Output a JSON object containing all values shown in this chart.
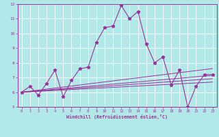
{
  "bg_color": "#b3e8e8",
  "line_color": "#993399",
  "grid_color": "#ffffff",
  "xlabel": "Windchill (Refroidissement éolien,°C)",
  "xlim": [
    -0.5,
    23.5
  ],
  "ylim": [
    5,
    12
  ],
  "yticks": [
    5,
    6,
    7,
    8,
    9,
    10,
    11,
    12
  ],
  "xticks": [
    0,
    1,
    2,
    3,
    4,
    5,
    6,
    7,
    8,
    9,
    10,
    11,
    12,
    13,
    14,
    15,
    16,
    17,
    18,
    19,
    20,
    21,
    22,
    23
  ],
  "main_line": [
    6.0,
    6.4,
    5.8,
    6.6,
    7.5,
    5.7,
    6.8,
    7.6,
    7.7,
    9.4,
    10.4,
    10.5,
    11.9,
    11.0,
    11.5,
    9.3,
    8.0,
    8.4,
    6.5,
    7.5,
    5.0,
    6.4,
    7.2,
    7.2
  ],
  "linear_lines": [
    [
      6.0,
      6.03,
      6.06,
      6.09,
      6.12,
      6.15,
      6.18,
      6.21,
      6.24,
      6.27,
      6.3,
      6.33,
      6.36,
      6.39,
      6.42,
      6.45,
      6.48,
      6.51,
      6.54,
      6.57,
      6.6,
      6.63,
      6.66,
      6.69
    ],
    [
      6.0,
      6.04,
      6.08,
      6.12,
      6.16,
      6.2,
      6.24,
      6.28,
      6.32,
      6.36,
      6.4,
      6.44,
      6.48,
      6.52,
      6.56,
      6.6,
      6.64,
      6.68,
      6.72,
      6.76,
      6.8,
      6.84,
      6.88,
      6.92
    ],
    [
      6.0,
      6.05,
      6.1,
      6.15,
      6.2,
      6.25,
      6.3,
      6.35,
      6.4,
      6.45,
      6.5,
      6.55,
      6.6,
      6.65,
      6.7,
      6.75,
      6.8,
      6.85,
      6.9,
      6.95,
      7.0,
      7.05,
      7.1,
      7.15
    ],
    [
      6.0,
      6.07,
      6.14,
      6.21,
      6.28,
      6.35,
      6.42,
      6.49,
      6.56,
      6.63,
      6.7,
      6.77,
      6.84,
      6.91,
      6.98,
      7.05,
      7.12,
      7.19,
      7.26,
      7.33,
      7.4,
      7.47,
      7.54,
      7.61
    ]
  ]
}
